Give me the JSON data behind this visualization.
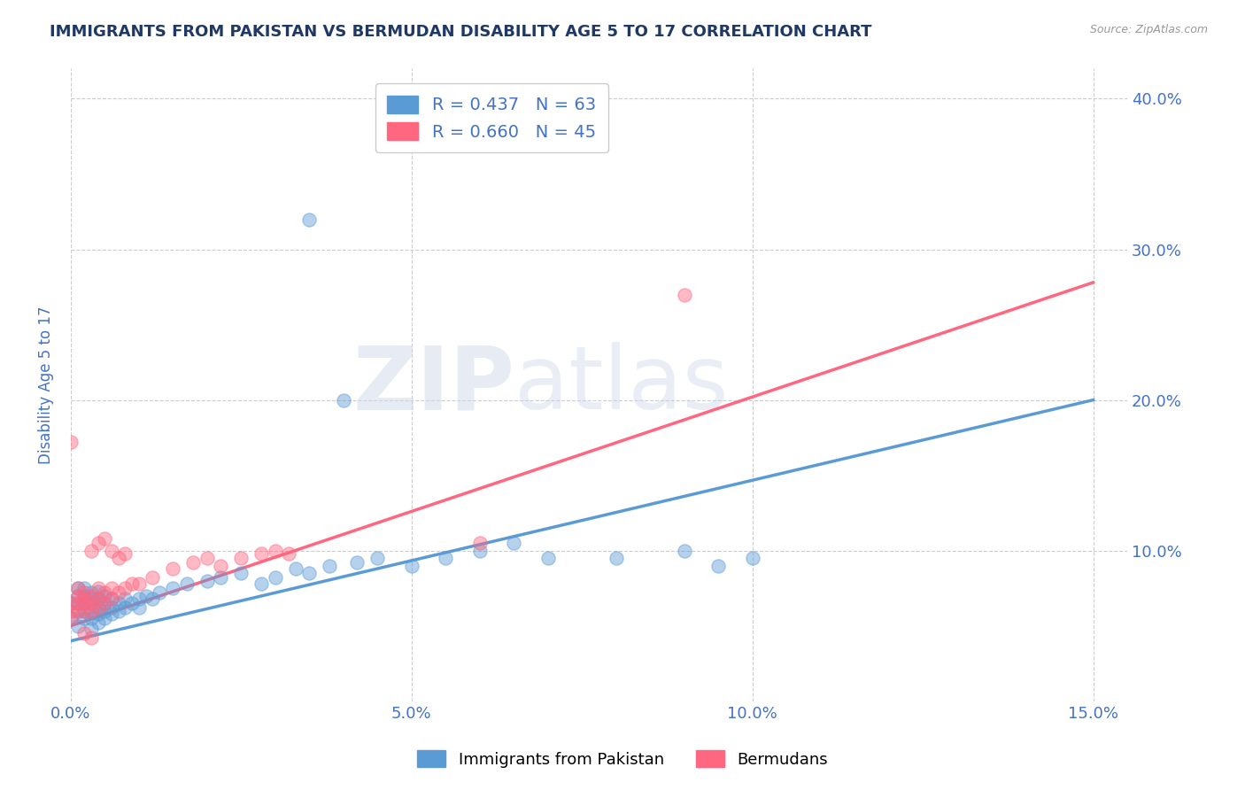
{
  "title": "IMMIGRANTS FROM PAKISTAN VS BERMUDAN DISABILITY AGE 5 TO 17 CORRELATION CHART",
  "source_text": "Source: ZipAtlas.com",
  "ylabel": "Disability Age 5 to 17",
  "xlim": [
    0.0,
    0.155
  ],
  "ylim": [
    0.0,
    0.42
  ],
  "yticks": [
    0.1,
    0.2,
    0.3,
    0.4
  ],
  "ytick_labels": [
    "10.0%",
    "20.0%",
    "30.0%",
    "40.0%"
  ],
  "xticks": [
    0.0,
    0.05,
    0.1,
    0.15
  ],
  "xtick_labels": [
    "0.0%",
    "5.0%",
    "10.0%",
    "15.0%"
  ],
  "blue_color": "#5B9BD5",
  "pink_color": "#FF6680",
  "blue_R": 0.437,
  "blue_N": 63,
  "pink_R": 0.66,
  "pink_N": 45,
  "legend_label_blue": "Immigrants from Pakistan",
  "legend_label_pink": "Bermudans",
  "watermark_zip": "ZIP",
  "watermark_atlas": "atlas",
  "title_color": "#1F3864",
  "axis_label_color": "#4472C4",
  "tick_color": "#4472C4",
  "blue_scatter_x": [
    0.0,
    0.0,
    0.001,
    0.001,
    0.001,
    0.001,
    0.001,
    0.002,
    0.002,
    0.002,
    0.002,
    0.002,
    0.003,
    0.003,
    0.003,
    0.003,
    0.003,
    0.003,
    0.004,
    0.004,
    0.004,
    0.004,
    0.004,
    0.005,
    0.005,
    0.005,
    0.005,
    0.006,
    0.006,
    0.006,
    0.007,
    0.007,
    0.008,
    0.008,
    0.009,
    0.01,
    0.01,
    0.011,
    0.012,
    0.013,
    0.015,
    0.017,
    0.02,
    0.022,
    0.025,
    0.028,
    0.03,
    0.033,
    0.035,
    0.038,
    0.042,
    0.045,
    0.05,
    0.055,
    0.06,
    0.065,
    0.07,
    0.08,
    0.09,
    0.035,
    0.04,
    0.095,
    0.1
  ],
  "blue_scatter_y": [
    0.055,
    0.065,
    0.05,
    0.06,
    0.065,
    0.07,
    0.075,
    0.055,
    0.06,
    0.065,
    0.07,
    0.075,
    0.048,
    0.055,
    0.06,
    0.065,
    0.068,
    0.072,
    0.052,
    0.058,
    0.063,
    0.068,
    0.073,
    0.055,
    0.06,
    0.065,
    0.07,
    0.058,
    0.062,
    0.068,
    0.06,
    0.065,
    0.062,
    0.068,
    0.065,
    0.062,
    0.068,
    0.07,
    0.068,
    0.072,
    0.075,
    0.078,
    0.08,
    0.082,
    0.085,
    0.078,
    0.082,
    0.088,
    0.085,
    0.09,
    0.092,
    0.095,
    0.09,
    0.095,
    0.1,
    0.105,
    0.095,
    0.095,
    0.1,
    0.32,
    0.2,
    0.09,
    0.095
  ],
  "pink_scatter_x": [
    0.0,
    0.0,
    0.0,
    0.0,
    0.001,
    0.001,
    0.001,
    0.001,
    0.002,
    0.002,
    0.002,
    0.002,
    0.003,
    0.003,
    0.003,
    0.004,
    0.004,
    0.004,
    0.005,
    0.005,
    0.006,
    0.006,
    0.007,
    0.008,
    0.009,
    0.01,
    0.012,
    0.015,
    0.018,
    0.02,
    0.022,
    0.025,
    0.028,
    0.03,
    0.032,
    0.003,
    0.004,
    0.005,
    0.006,
    0.007,
    0.008,
    0.09,
    0.06,
    0.002,
    0.003
  ],
  "pink_scatter_y": [
    0.055,
    0.06,
    0.065,
    0.172,
    0.06,
    0.065,
    0.07,
    0.075,
    0.06,
    0.065,
    0.068,
    0.072,
    0.06,
    0.065,
    0.07,
    0.062,
    0.068,
    0.075,
    0.065,
    0.072,
    0.068,
    0.075,
    0.072,
    0.075,
    0.078,
    0.078,
    0.082,
    0.088,
    0.092,
    0.095,
    0.09,
    0.095,
    0.098,
    0.1,
    0.098,
    0.1,
    0.105,
    0.108,
    0.1,
    0.095,
    0.098,
    0.27,
    0.105,
    0.045,
    0.042
  ],
  "blue_line_x": [
    0.0,
    0.15
  ],
  "blue_line_y": [
    0.04,
    0.2
  ],
  "pink_line_x": [
    0.0,
    0.15
  ],
  "pink_line_y": [
    0.05,
    0.278
  ]
}
